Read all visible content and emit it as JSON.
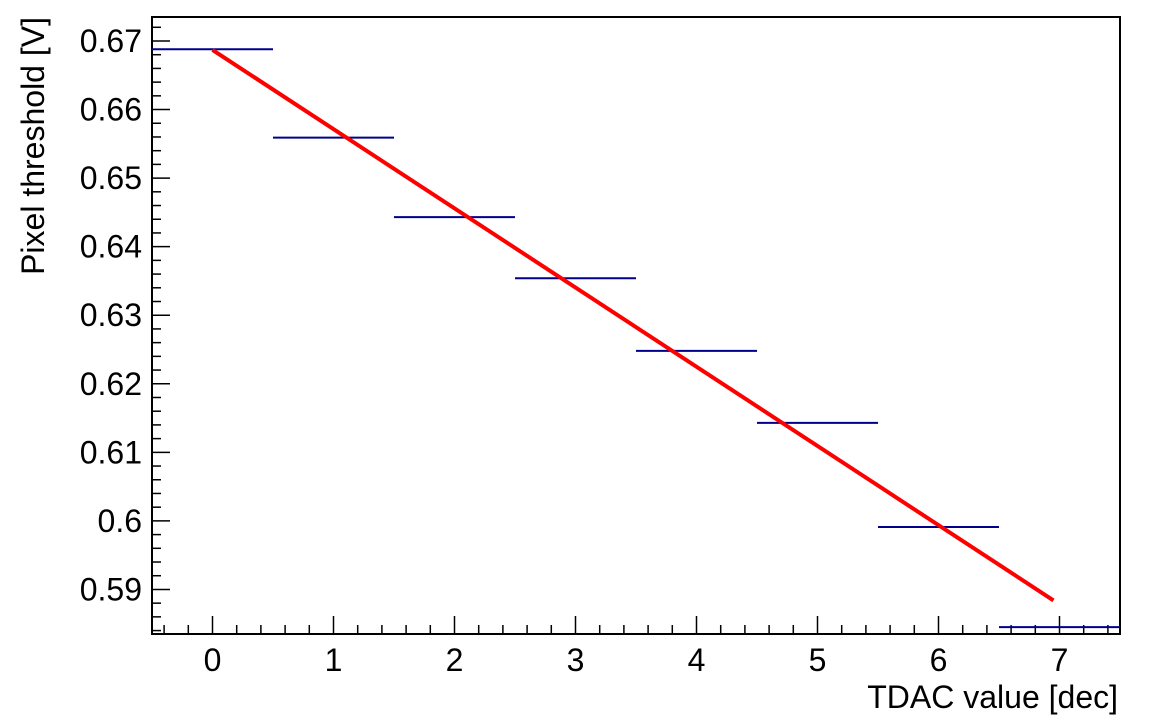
{
  "chart_data": {
    "type": "line",
    "title": "",
    "xlabel": "TDAC value [dec]",
    "ylabel": "Pixel threshold [V]",
    "xlim": [
      -0.5,
      7.5
    ],
    "ylim": [
      0.5835,
      0.6735
    ],
    "x_ticks": [
      0,
      1,
      2,
      3,
      4,
      5,
      6,
      7
    ],
    "x_tick_labels": [
      "0",
      "1",
      "2",
      "3",
      "4",
      "5",
      "6",
      "7"
    ],
    "y_ticks": [
      0.59,
      0.6,
      0.61,
      0.62,
      0.63,
      0.64,
      0.65,
      0.66,
      0.67
    ],
    "y_tick_labels": [
      "0.59",
      "0.6",
      "0.61",
      "0.62",
      "0.63",
      "0.64",
      "0.65",
      "0.66",
      "0.67"
    ],
    "grid": false,
    "legend": "none",
    "series": [
      {
        "kind": "histogram-bins",
        "color": "#00008b",
        "bin_width": 1,
        "x": [
          0,
          1,
          2,
          3,
          4,
          5,
          6,
          7
        ],
        "values": [
          0.6688,
          0.6559,
          0.6443,
          0.6354,
          0.6248,
          0.6143,
          0.5991,
          0.5845
        ]
      },
      {
        "kind": "fit-line",
        "color": "#ff0000",
        "x": [
          0,
          6.95
        ],
        "values": [
          0.6687,
          0.5884
        ]
      }
    ]
  }
}
